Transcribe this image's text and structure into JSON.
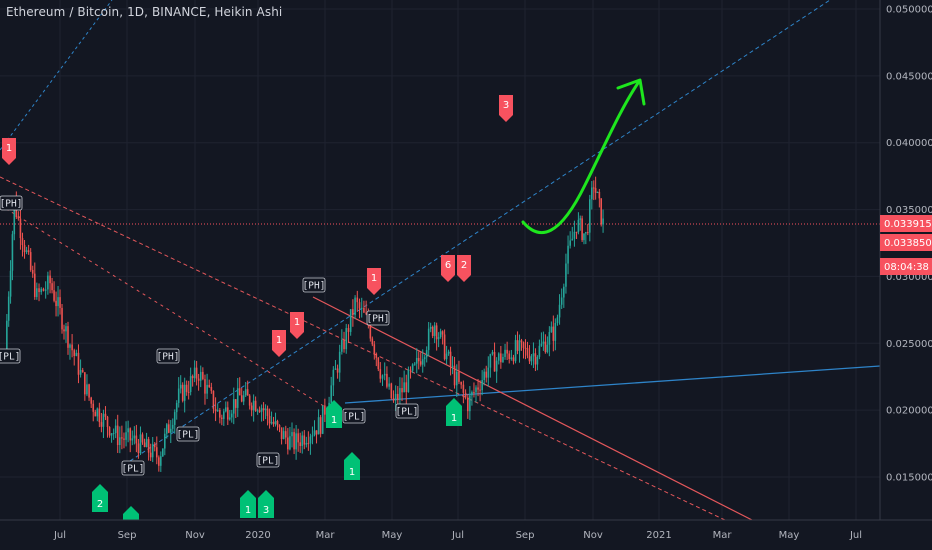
{
  "header": {
    "title": "Ethereum / Bitcoin, 1D, BINANCE, Heikin Ashi"
  },
  "price_axis": {
    "ticks": [
      "0.050000",
      "0.045000",
      "0.040000",
      "0.035000",
      "0.030000",
      "0.025000",
      "0.020000",
      "0.015000"
    ],
    "current_price": "0.033915",
    "secondary_price": "0.033850",
    "countdown": "08:04:38"
  },
  "time_axis": {
    "labels": [
      "Jul",
      "Sep",
      "Nov",
      "2020",
      "Mar",
      "May",
      "Jul",
      "Sep",
      "Nov",
      "2021",
      "Mar",
      "May",
      "Jul"
    ]
  },
  "pivot_labels": [
    "[PH]",
    "[PL]",
    "[PL]",
    "[PH]",
    "[PL]",
    "[PL]",
    "[PH]",
    "[PL]",
    "[PH]",
    "[PL]"
  ],
  "sell_badges": [
    "1",
    "1",
    "1",
    "1",
    "6",
    "2",
    "3"
  ],
  "buy_badges": [
    "2",
    "1",
    "1",
    "3",
    "1",
    "1",
    "1"
  ],
  "colors": {
    "background": "#131722",
    "bull": "#26a69a",
    "bear": "#ef5350",
    "buy_badge": "#00c176",
    "sell_badge": "#f7525f",
    "projection_arrow": "#1ee61e",
    "trendline_blue": "#2e84c9"
  },
  "chart_data": {
    "type": "candlestick",
    "title": "Ethereum / Bitcoin, 1D, BINANCE, Heikin Ashi",
    "ylim": [
      0.012,
      0.052
    ],
    "y_ticks": [
      0.05,
      0.045,
      0.04,
      0.035,
      0.03,
      0.025,
      0.02,
      0.015
    ],
    "x_ticks": [
      "Jul",
      "Sep",
      "Nov",
      "2020",
      "Mar",
      "May",
      "Jul",
      "Sep",
      "Nov",
      "2021",
      "Mar",
      "May",
      "Jul"
    ],
    "last_price": 0.033915,
    "approx_close_path": [
      {
        "date": "2019-06-01",
        "value": 0.0245
      },
      {
        "date": "2019-06-08",
        "value": 0.0355
      },
      {
        "date": "2019-06-25",
        "value": 0.0285
      },
      {
        "date": "2019-07-05",
        "value": 0.0295
      },
      {
        "date": "2019-07-20",
        "value": 0.025
      },
      {
        "date": "2019-08-05",
        "value": 0.0205
      },
      {
        "date": "2019-08-25",
        "value": 0.018
      },
      {
        "date": "2019-09-05",
        "value": 0.0178
      },
      {
        "date": "2019-09-25",
        "value": 0.0165
      },
      {
        "date": "2019-10-10",
        "value": 0.021
      },
      {
        "date": "2019-10-25",
        "value": 0.0228
      },
      {
        "date": "2019-11-10",
        "value": 0.0195
      },
      {
        "date": "2019-11-25",
        "value": 0.021
      },
      {
        "date": "2019-12-10",
        "value": 0.0205
      },
      {
        "date": "2019-12-25",
        "value": 0.0183
      },
      {
        "date": "2020-01-05",
        "value": 0.0175
      },
      {
        "date": "2020-01-25",
        "value": 0.019
      },
      {
        "date": "2020-02-10",
        "value": 0.0245
      },
      {
        "date": "2020-02-20",
        "value": 0.028
      },
      {
        "date": "2020-03-01",
        "value": 0.0265
      },
      {
        "date": "2020-03-10",
        "value": 0.023
      },
      {
        "date": "2020-03-20",
        "value": 0.0205
      },
      {
        "date": "2020-04-05",
        "value": 0.023
      },
      {
        "date": "2020-04-20",
        "value": 0.0265
      },
      {
        "date": "2020-05-05",
        "value": 0.0225
      },
      {
        "date": "2020-05-15",
        "value": 0.0205
      },
      {
        "date": "2020-06-01",
        "value": 0.0235
      },
      {
        "date": "2020-06-20",
        "value": 0.0245
      },
      {
        "date": "2020-07-05",
        "value": 0.0242
      },
      {
        "date": "2020-07-20",
        "value": 0.026
      },
      {
        "date": "2020-07-28",
        "value": 0.031
      },
      {
        "date": "2020-08-05",
        "value": 0.034
      },
      {
        "date": "2020-08-12",
        "value": 0.033
      },
      {
        "date": "2020-08-18",
        "value": 0.037
      },
      {
        "date": "2020-08-25",
        "value": 0.0339
      }
    ]
  }
}
